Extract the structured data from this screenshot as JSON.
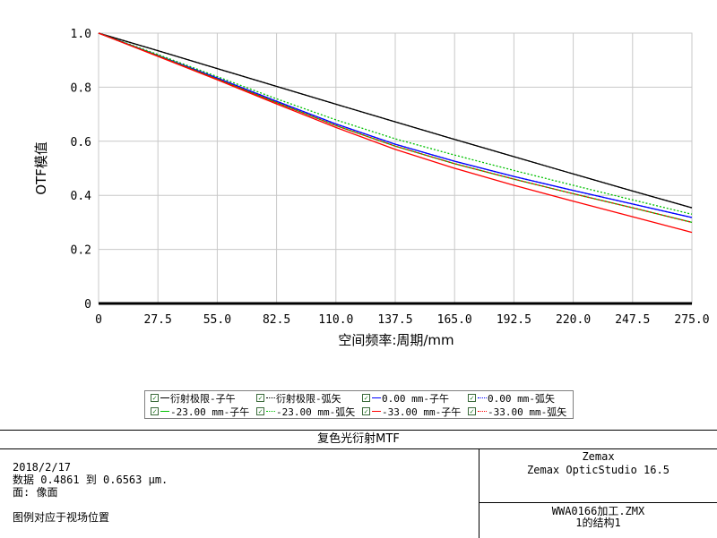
{
  "chart_data": {
    "type": "line",
    "xlabel": "空间频率:周期/mm",
    "ylabel": "OTF模值",
    "xlim": [
      0,
      275
    ],
    "ylim": [
      0,
      1
    ],
    "x_ticks": [
      "0",
      "27.5",
      "55.0",
      "82.5",
      "110.0",
      "137.5",
      "165.0",
      "192.5",
      "220.0",
      "247.5",
      "275.0"
    ],
    "y_ticks": [
      "0",
      "0.2",
      "0.4",
      "0.6",
      "0.8",
      "1.0"
    ],
    "grid": true,
    "legend_position": "bottom",
    "x": [
      0,
      27.5,
      55,
      82.5,
      110,
      137.5,
      165,
      192.5,
      220,
      247.5,
      275
    ],
    "series": [
      {
        "name": "衍射极限-子午",
        "color": "#000000",
        "dash": "solid",
        "values": [
          1.0,
          0.935,
          0.869,
          0.803,
          0.737,
          0.672,
          0.607,
          0.543,
          0.479,
          0.416,
          0.354
        ]
      },
      {
        "name": "衍射极限-弧矢",
        "color": "#000000",
        "dash": "dotted",
        "values": [
          1.0,
          0.935,
          0.869,
          0.803,
          0.737,
          0.672,
          0.607,
          0.543,
          0.479,
          0.416,
          0.354
        ]
      },
      {
        "name": "0.00 mm-子午",
        "color": "#0000ff",
        "dash": "solid",
        "values": [
          1.0,
          0.918,
          0.834,
          0.748,
          0.664,
          0.589,
          0.526,
          0.47,
          0.418,
          0.368,
          0.318
        ]
      },
      {
        "name": "0.00 mm-弧矢",
        "color": "#0000ff",
        "dash": "dotted",
        "values": [
          1.0,
          0.918,
          0.834,
          0.748,
          0.664,
          0.589,
          0.526,
          0.47,
          0.418,
          0.368,
          0.318
        ]
      },
      {
        "name": "-23.00 mm-子午",
        "color": "#00c000",
        "dash": "solid",
        "values": [
          1.0,
          0.916,
          0.83,
          0.743,
          0.658,
          0.582,
          0.517,
          0.46,
          0.406,
          0.354,
          0.3
        ]
      },
      {
        "name": "-23.00 mm-弧矢",
        "color": "#00c000",
        "dash": "dotted",
        "values": [
          1.0,
          0.921,
          0.839,
          0.757,
          0.679,
          0.609,
          0.549,
          0.492,
          0.437,
          0.383,
          0.33
        ]
      },
      {
        "name": "-33.00 mm-子午",
        "color": "#ff0000",
        "dash": "solid",
        "values": [
          1.0,
          0.914,
          0.827,
          0.738,
          0.651,
          0.57,
          0.5,
          0.437,
          0.378,
          0.321,
          0.263
        ]
      },
      {
        "name": "-33.00 mm-弧矢",
        "color": "#ff0000",
        "dash": "dotted",
        "values": [
          1.0,
          0.916,
          0.83,
          0.743,
          0.658,
          0.582,
          0.517,
          0.46,
          0.406,
          0.354,
          0.3
        ]
      }
    ]
  },
  "info": {
    "title": "复色光衍射MTF",
    "date": "2018/2/17",
    "data_line": "数据 0.4861 到 0.6563 μm.",
    "surface_line": "面: 像面",
    "legend_note": "图例对应于视场位置",
    "company": "Zemax",
    "product": "Zemax OpticStudio 16.5",
    "file": "WWA0166加工.ZMX",
    "config": "1的结构1"
  }
}
